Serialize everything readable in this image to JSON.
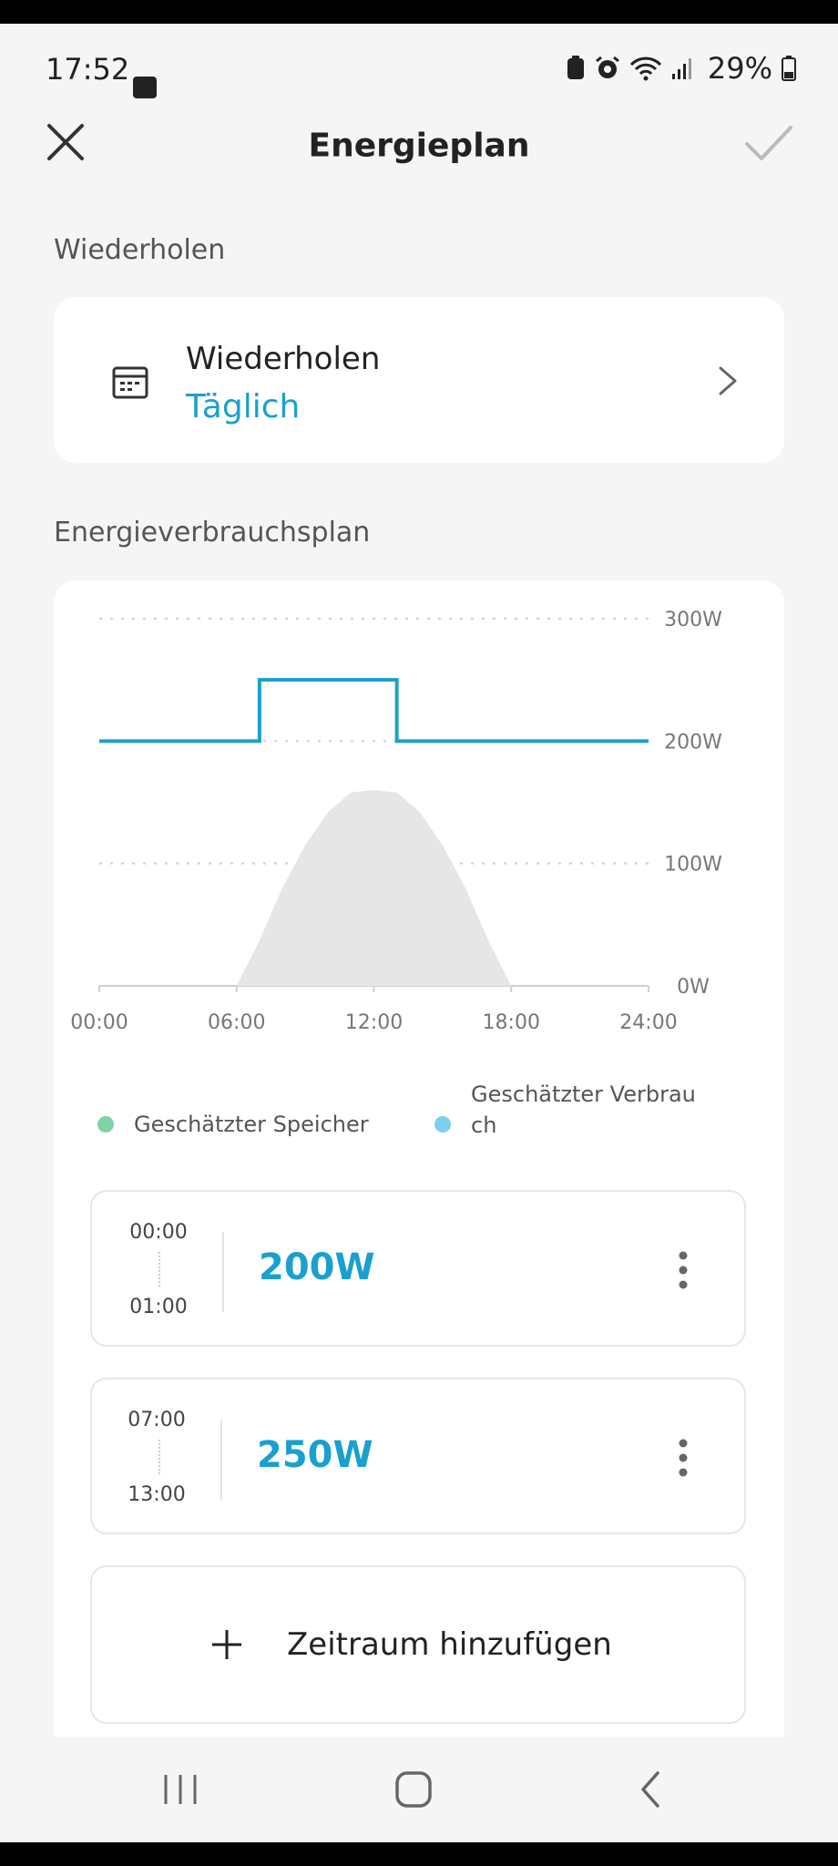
{
  "status_bar": {
    "time": "17:52",
    "battery": "29%"
  },
  "header": {
    "title": "Energieplan"
  },
  "repeat_section": {
    "label": "Wiederholen",
    "card_title": "Wiederholen",
    "card_value": "Täglich"
  },
  "plan_section": {
    "label": "Energieverbrauchsplan"
  },
  "chart_data": {
    "type": "line",
    "title": "",
    "x_ticks": [
      "00:00",
      "06:00",
      "12:00",
      "18:00",
      "24:00"
    ],
    "y_ticks": [
      "300W",
      "200W",
      "100W",
      "0W"
    ],
    "ylim": [
      0,
      300
    ],
    "xlim": [
      0,
      24
    ],
    "grid": true,
    "legend_position": "bottom",
    "series": [
      {
        "name": "Geschätzter Verbrauch",
        "kind": "step-line",
        "color": "#1aa0cf",
        "x": [
          0,
          7,
          7,
          13,
          13,
          24
        ],
        "y": [
          200,
          200,
          250,
          250,
          200,
          200
        ]
      },
      {
        "name": "Geschätzter Speicher",
        "kind": "area",
        "color": "#e6e6e6",
        "x": [
          6,
          7,
          8,
          9,
          10,
          11,
          12,
          13,
          14,
          15,
          16,
          17,
          18
        ],
        "y": [
          0,
          37,
          80,
          115,
          142,
          158,
          160,
          158,
          142,
          115,
          80,
          37,
          0
        ]
      }
    ]
  },
  "legend": {
    "storage": {
      "label": "Geschätzter Speicher",
      "color": "#7fd3a4"
    },
    "consumption": {
      "label_line1": "Geschätzter Verbrau",
      "label_line2": "ch",
      "color": "#7ccfee"
    }
  },
  "slots": [
    {
      "from": "00:00",
      "to": "01:00",
      "value": "200W"
    },
    {
      "from": "07:00",
      "to": "13:00",
      "value": "250W"
    }
  ],
  "add_button": {
    "label": "Zeitraum hinzufügen"
  }
}
